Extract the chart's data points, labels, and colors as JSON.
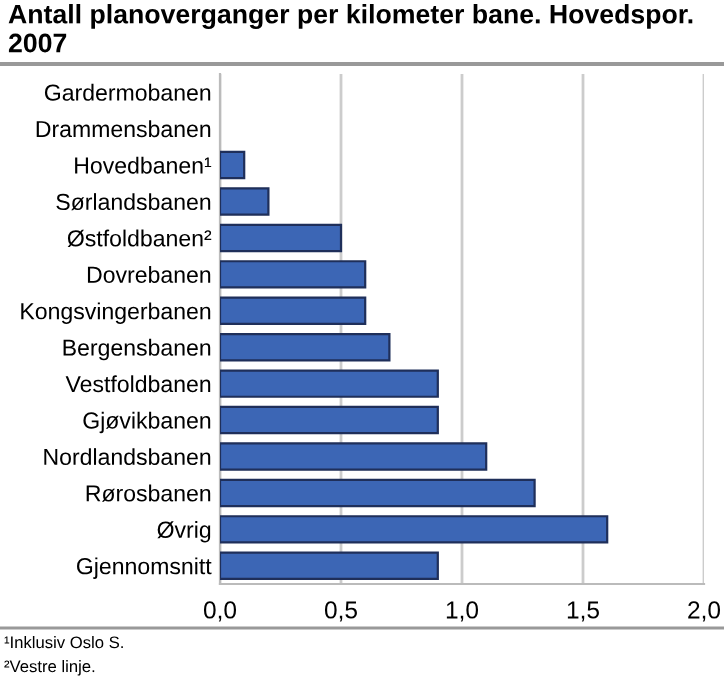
{
  "chart_data": {
    "type": "bar",
    "orientation": "horizontal",
    "title": "Antall planoverganger per kilometer bane. Hovedspor. 2007",
    "categories": [
      "Gardermobanen",
      "Drammensbanen",
      "Hovedbanen¹",
      "Sørlandsbanen",
      "Østfoldbanen²",
      "Dovrebanen",
      "Kongsvingerbanen",
      "Bergensbanen",
      "Vestfoldbanen",
      "Gjøvikbanen",
      "Nordlandsbanen",
      "Rørosbanen",
      "Øvrig",
      "Gjennomsnitt"
    ],
    "values": [
      0,
      0,
      0.1,
      0.2,
      0.5,
      0.6,
      0.6,
      0.7,
      0.9,
      0.9,
      1.1,
      1.3,
      1.6,
      0.9
    ],
    "color": "#3c66b5",
    "xlim": [
      0,
      2
    ],
    "xticks": [
      {
        "value": 0,
        "label": "0,0"
      },
      {
        "value": 0.5,
        "label": "0,5"
      },
      {
        "value": 1,
        "label": "1,0"
      },
      {
        "value": 1.5,
        "label": "1,5"
      },
      {
        "value": 2,
        "label": "2,0"
      }
    ],
    "grid": "x",
    "annotations": [
      "¹Inklusiv Oslo S.",
      "²Vestre linje."
    ]
  }
}
